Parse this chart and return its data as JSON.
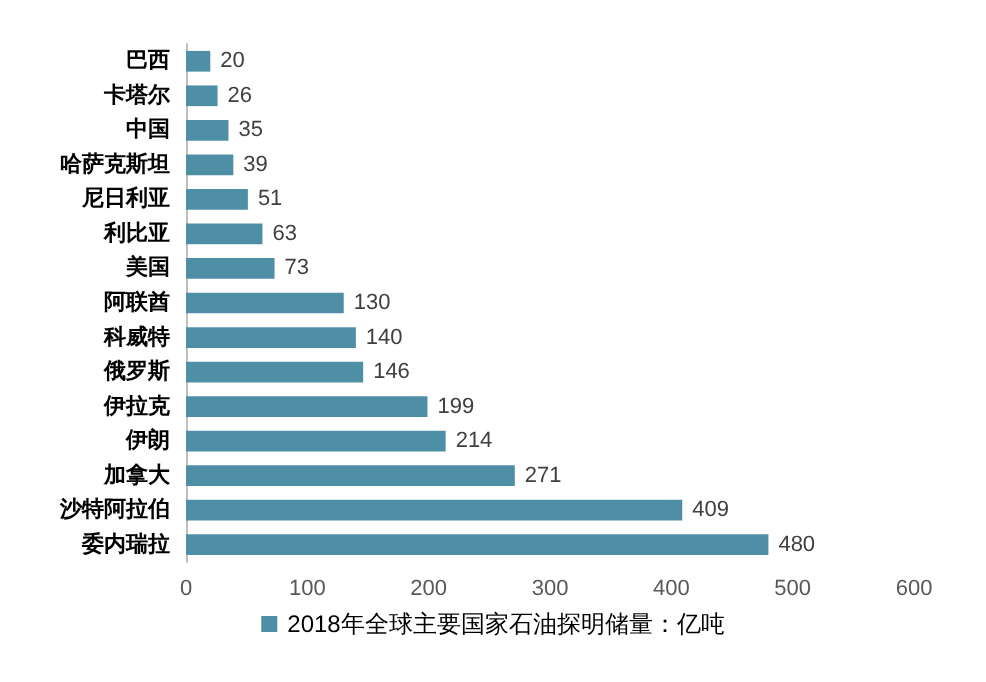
{
  "chart_data": {
    "type": "bar",
    "orientation": "horizontal",
    "categories": [
      "巴西",
      "卡塔尔",
      "中国",
      "哈萨克斯坦",
      "尼日利亚",
      "利比亚",
      "美国",
      "阿联酋",
      "科威特",
      "俄罗斯",
      "伊拉克",
      "伊朗",
      "加拿大",
      "沙特阿拉伯",
      "委内瑞拉"
    ],
    "series": [
      {
        "name": "2018年全球主要国家石油探明储量：亿吨",
        "color": "#4f8fa6",
        "values": [
          20,
          26,
          35,
          39,
          51,
          63,
          73,
          130,
          140,
          146,
          199,
          214,
          271,
          409,
          480
        ]
      }
    ],
    "xlim": [
      0,
      600
    ],
    "xticks": [
      0,
      100,
      200,
      300,
      400,
      500,
      600
    ],
    "data_labels": true,
    "legend": "bottom",
    "grid": false
  }
}
